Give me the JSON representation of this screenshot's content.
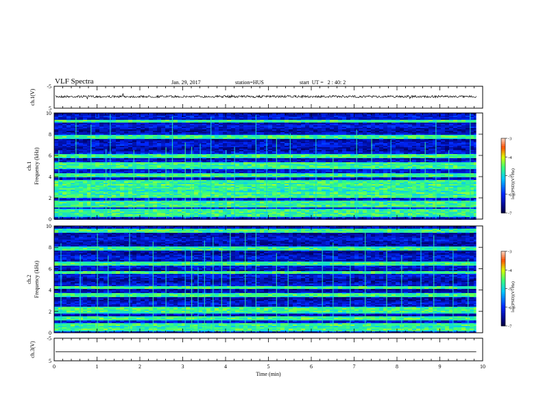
{
  "header": {
    "title": "VLF Spectra",
    "date": "Jan. 29, 2017",
    "station": "station=HUS",
    "start": "start  UT =   2 : 40: 2"
  },
  "chart_data": [
    {
      "type": "line",
      "name": "ch1-waveform",
      "ylabel": "ch.1(V)",
      "ylim": [
        -5,
        5
      ],
      "yticks": [
        "5",
        "-5"
      ],
      "xlim": [
        0,
        10
      ],
      "trace_level": 0.3,
      "trace_style": "noisy"
    },
    {
      "type": "heatmap",
      "name": "ch1-spectrogram",
      "ylabel": "Frequency  (kHz)",
      "channel_label": "ch.1",
      "xlim": [
        0,
        10
      ],
      "ylim": [
        0,
        10
      ],
      "yticks": [
        "0",
        "2",
        "4",
        "6",
        "8",
        "10"
      ],
      "data_end_min": 9.85,
      "bands_khz": [
        0.5,
        0.8,
        1.3,
        1.6,
        2.2,
        2.5,
        2.95,
        3.3,
        3.6,
        4.2,
        5.0,
        5.3,
        6.0,
        7.8,
        9.3
      ],
      "spikes_min": [
        0.1,
        0.5,
        0.85,
        1.2,
        1.3,
        1.85,
        2.2,
        2.6,
        2.75,
        3.05,
        3.2,
        3.4,
        3.65,
        4.0,
        4.2,
        4.7,
        4.95,
        5.18,
        5.5,
        6.1,
        6.5,
        7.05,
        7.4,
        7.85,
        8.3,
        8.65,
        8.9,
        9.2,
        9.7
      ],
      "colorbar": {
        "label": "log(PSD)(V²/Hz)",
        "ticks": [
          "-3",
          "-4",
          "-5",
          "-6",
          "-7"
        ],
        "range": [
          -7,
          -3
        ]
      }
    },
    {
      "type": "heatmap",
      "name": "ch2-spectrogram",
      "ylabel": "Frequency  (kHz)",
      "channel_label": "ch.2",
      "xlim": [
        0,
        10
      ],
      "ylim": [
        0,
        10
      ],
      "yticks": [
        "0",
        "2",
        "4",
        "6",
        "8",
        "10"
      ],
      "data_end_min": 9.85,
      "bands_khz": [
        0.4,
        0.8,
        1.4,
        2.1,
        2.3,
        3.6,
        4.3,
        5.7,
        6.5,
        7.9,
        9.6
      ],
      "spikes_min": [
        0.15,
        0.6,
        1.0,
        1.25,
        1.75,
        2.3,
        2.6,
        3.05,
        3.2,
        3.35,
        3.5,
        3.7,
        3.9,
        4.1,
        4.45,
        4.7,
        5.18,
        5.45,
        6.25,
        6.5,
        6.9,
        7.25,
        7.75,
        8.1,
        8.55,
        8.85,
        9.3,
        9.65
      ],
      "colorbar": {
        "label": "log(PSD)(V²/Hz)",
        "ticks": [
          "-3",
          "-4",
          "-5",
          "-6",
          "-7"
        ],
        "range": [
          -7,
          -3
        ]
      }
    },
    {
      "type": "line",
      "name": "ch3-waveform",
      "ylabel": "ch.3(V)",
      "ylim": [
        -5,
        5
      ],
      "yticks": [
        "5",
        "-5"
      ],
      "xlim": [
        0,
        10
      ],
      "trace_level": -1.0,
      "trace_style": "flat",
      "xlabel": "Time  (min)",
      "xticks": [
        "0",
        "1",
        "2",
        "3",
        "4",
        "5",
        "6",
        "7",
        "8",
        "9",
        "10"
      ]
    }
  ]
}
